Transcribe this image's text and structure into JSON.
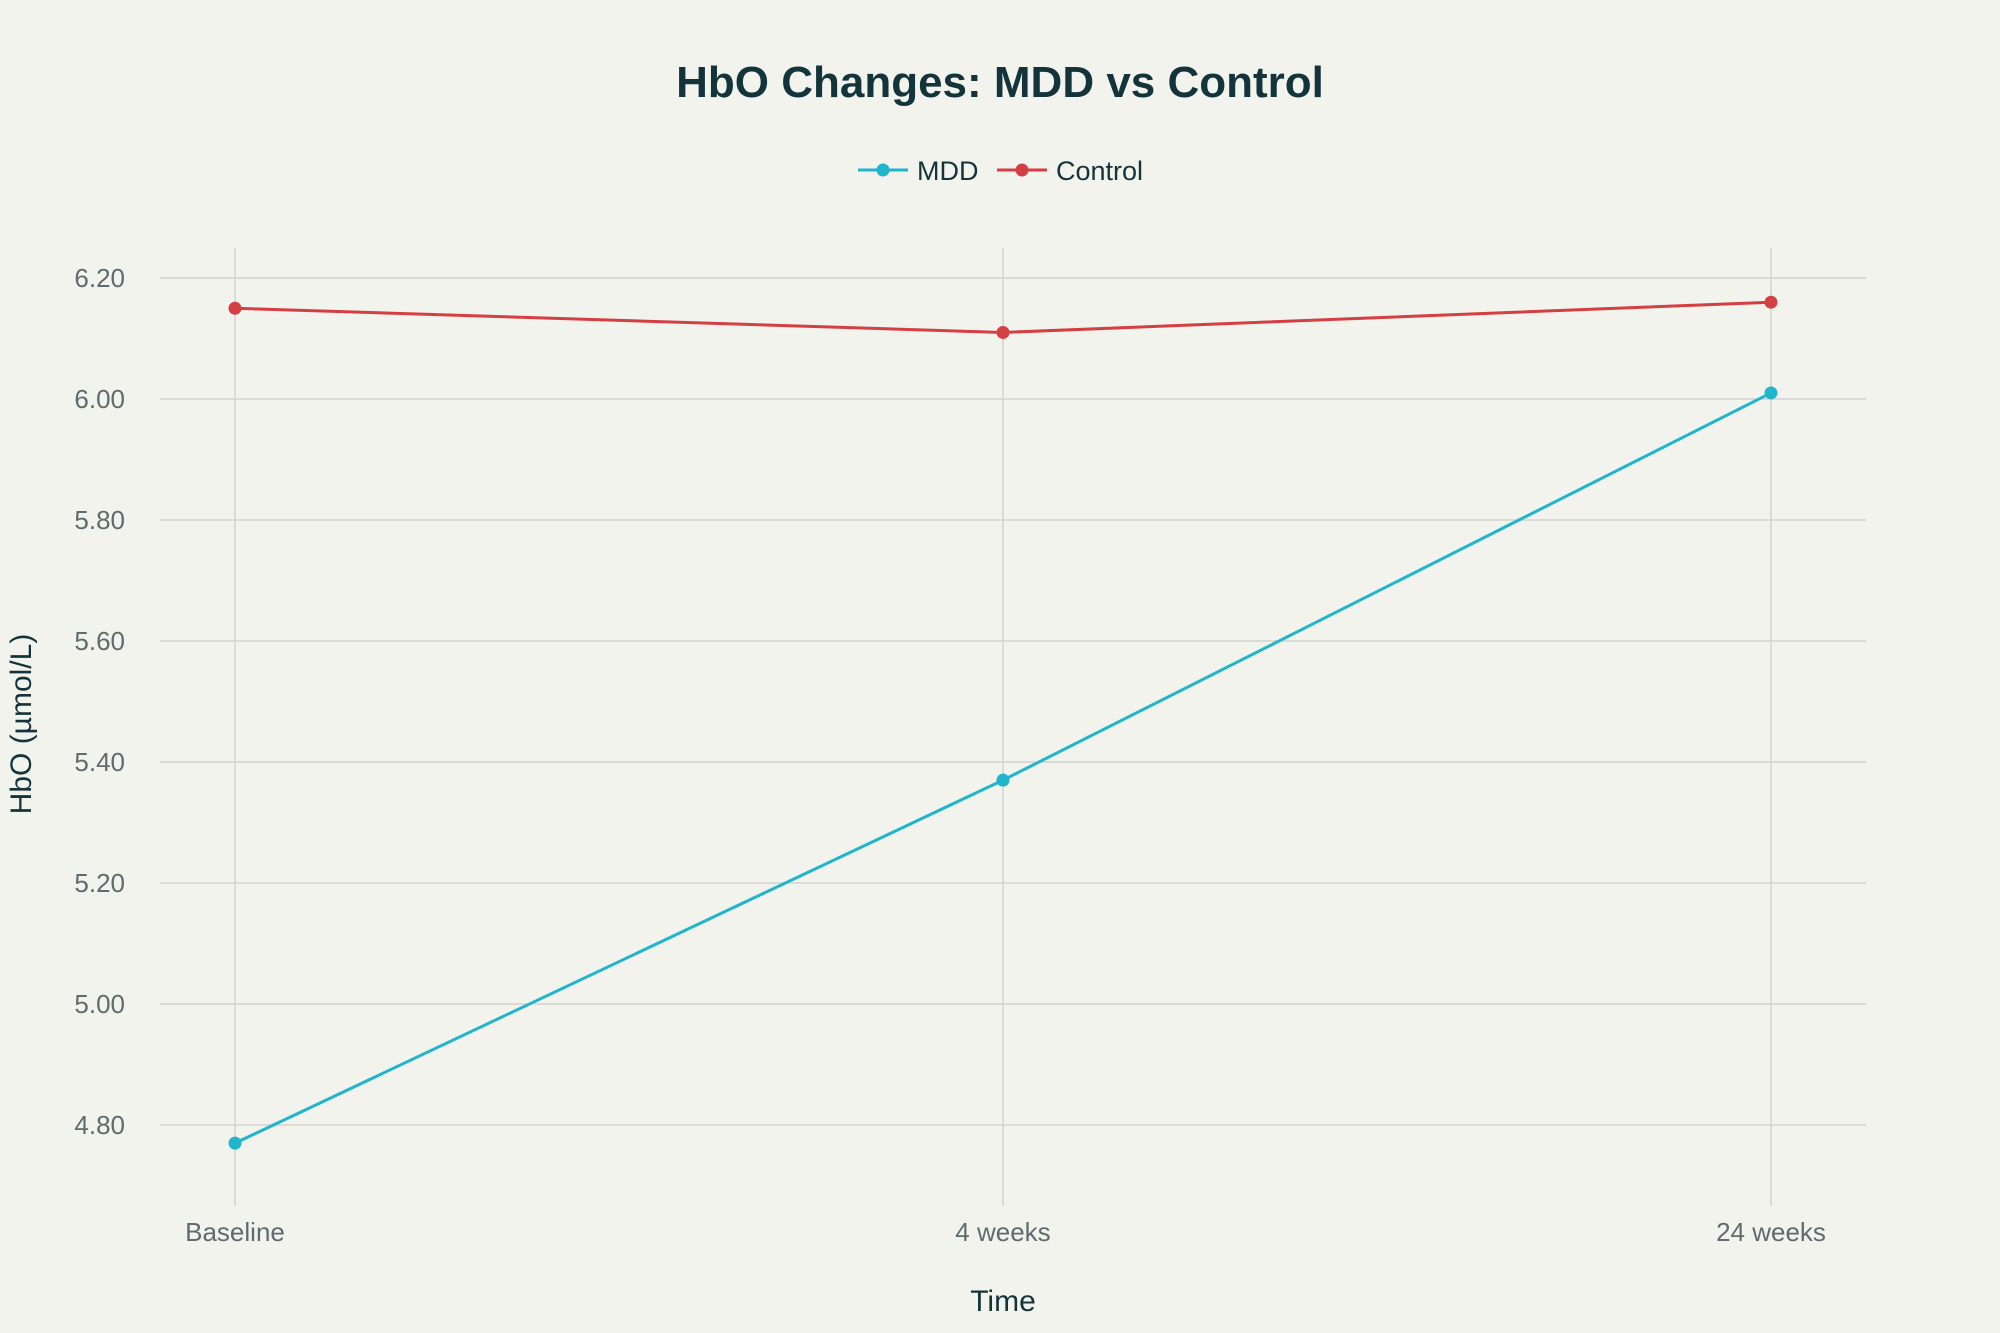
{
  "chart_data": {
    "type": "line",
    "title": "HbO Changes: MDD vs Control",
    "xlabel": "Time",
    "ylabel": "HbO (µmol/L)",
    "categories": [
      "Baseline",
      "4 weeks",
      "24 weeks"
    ],
    "ylim": [
      4.69,
      6.25
    ],
    "yticks": [
      4.8,
      5.0,
      5.2,
      5.4,
      5.6,
      5.8,
      6.0,
      6.2
    ],
    "ytick_labels": [
      "4.80",
      "5.00",
      "5.20",
      "5.40",
      "5.60",
      "5.80",
      "6.00",
      "6.20"
    ],
    "grid": true,
    "legend_position": "top-center",
    "series": [
      {
        "name": "MDD",
        "color": "#21b5cc",
        "values": [
          4.77,
          5.37,
          6.01
        ]
      },
      {
        "name": "Control",
        "color": "#d43f43",
        "values": [
          6.15,
          6.11,
          6.16
        ]
      }
    ]
  }
}
